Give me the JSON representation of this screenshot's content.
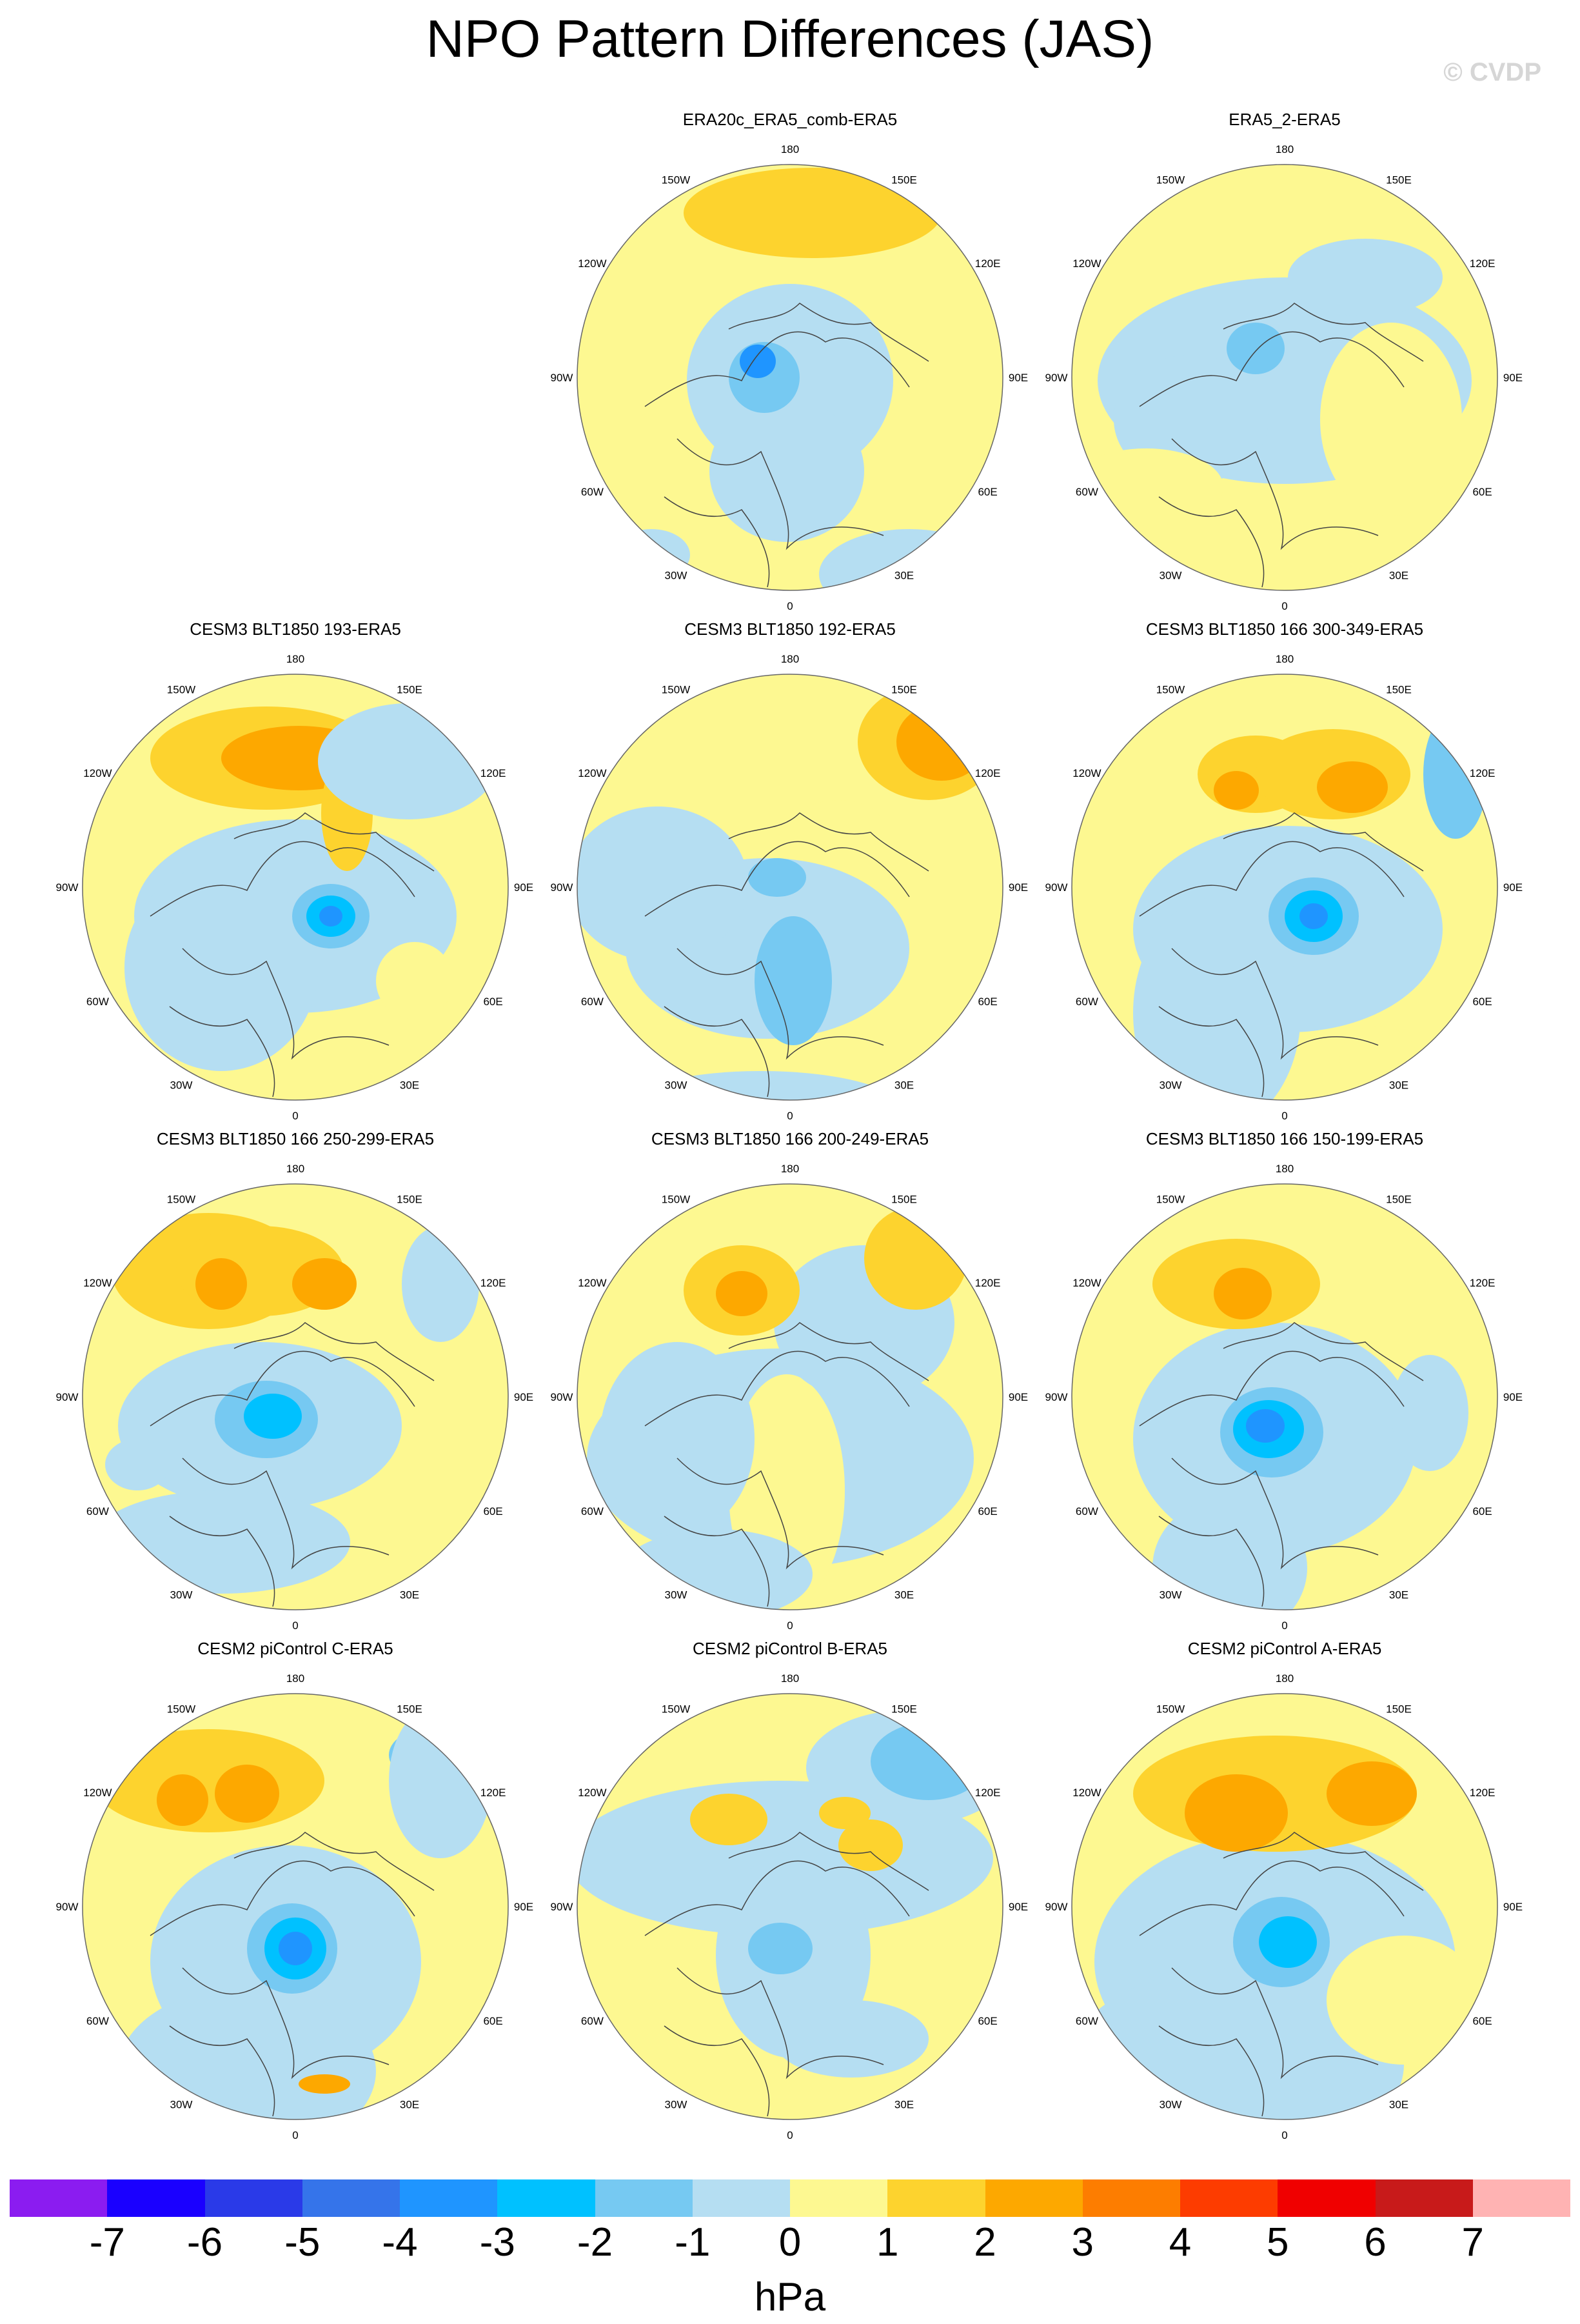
{
  "title": "NPO Pattern Differences (JAS)",
  "watermark": "© CVDP",
  "longitude_labels": [
    "180",
    "150E",
    "120E",
    "90E",
    "60E",
    "30E",
    "0",
    "30W",
    "60W",
    "90W",
    "120W",
    "150W"
  ],
  "panels": [
    {
      "title": "ERA20c_ERA5_comb-ERA5"
    },
    {
      "title": "ERA5_2-ERA5"
    },
    {
      "title": "CESM3 BLT1850 193-ERA5"
    },
    {
      "title": "CESM3 BLT1850 192-ERA5"
    },
    {
      "title": "CESM3 BLT1850 166 300-349-ERA5"
    },
    {
      "title": "CESM3 BLT1850 166 250-299-ERA5"
    },
    {
      "title": "CESM3 BLT1850 166 200-249-ERA5"
    },
    {
      "title": "CESM3 BLT1850 166 150-199-ERA5"
    },
    {
      "title": "CESM2 piControl C-ERA5"
    },
    {
      "title": "CESM2 piControl B-ERA5"
    },
    {
      "title": "CESM2 piControl A-ERA5"
    }
  ],
  "colorbar": {
    "unit": "hPa",
    "tick_labels": [
      "-7",
      "-6",
      "-5",
      "-4",
      "-3",
      "-2",
      "-1",
      "0",
      "1",
      "2",
      "3",
      "4",
      "5",
      "6",
      "7"
    ],
    "colors": [
      "#8b1cf0",
      "#1a00ff",
      "#2a3ae8",
      "#3574ea",
      "#1f95ff",
      "#00c1ff",
      "#76c9f2",
      "#b5def2",
      "#fdf891",
      "#fdd32e",
      "#fda800",
      "#fd7d00",
      "#fd3c00",
      "#f00000",
      "#c81a1a",
      "#ffb3b3"
    ]
  }
}
